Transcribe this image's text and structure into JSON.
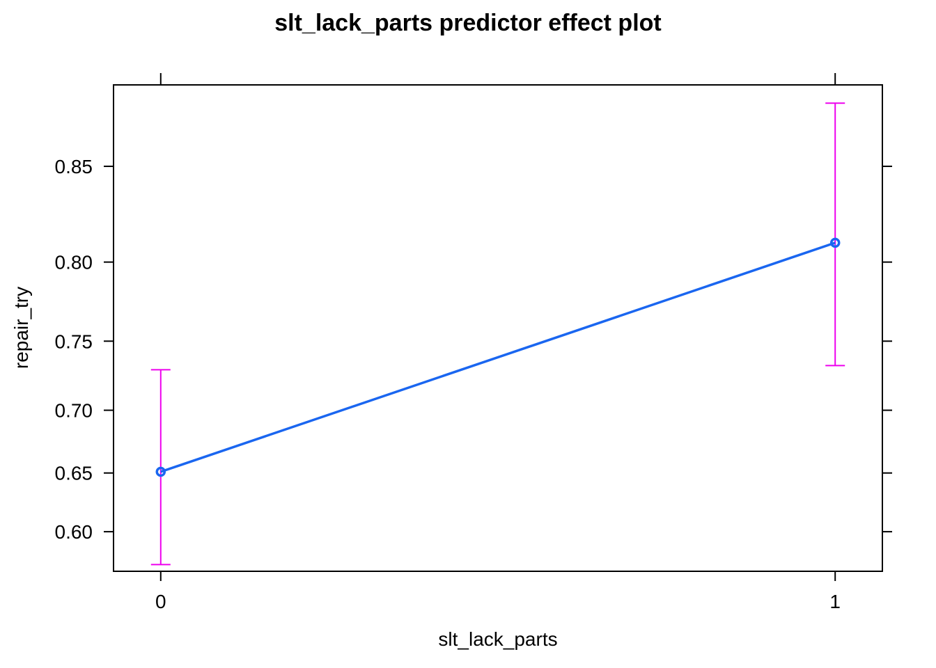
{
  "chart_data": {
    "type": "line",
    "title": "slt_lack_parts predictor effect plot",
    "xlabel": "slt_lack_parts",
    "ylabel": "repair_try",
    "x": [
      0,
      1
    ],
    "x_tick_labels": [
      "0",
      "1"
    ],
    "series": [
      {
        "values": [
          0.651,
          0.811
        ],
        "lower": [
          0.571,
          0.733
        ],
        "upper": [
          0.73,
          0.877
        ],
        "line_color": "#1a66f0",
        "error_bar_color": "#ee00ee"
      }
    ],
    "yticks": [
      0.6,
      0.65,
      0.7,
      0.75,
      0.8,
      0.85
    ],
    "ytick_labels": [
      "0.60",
      "0.65",
      "0.70",
      "0.75",
      "0.80",
      "0.85"
    ],
    "ylim": [
      0.565,
      0.884
    ],
    "xlim": [
      -0.07,
      1.07
    ],
    "y_scale": "logit",
    "grid": false,
    "legend": "none"
  }
}
